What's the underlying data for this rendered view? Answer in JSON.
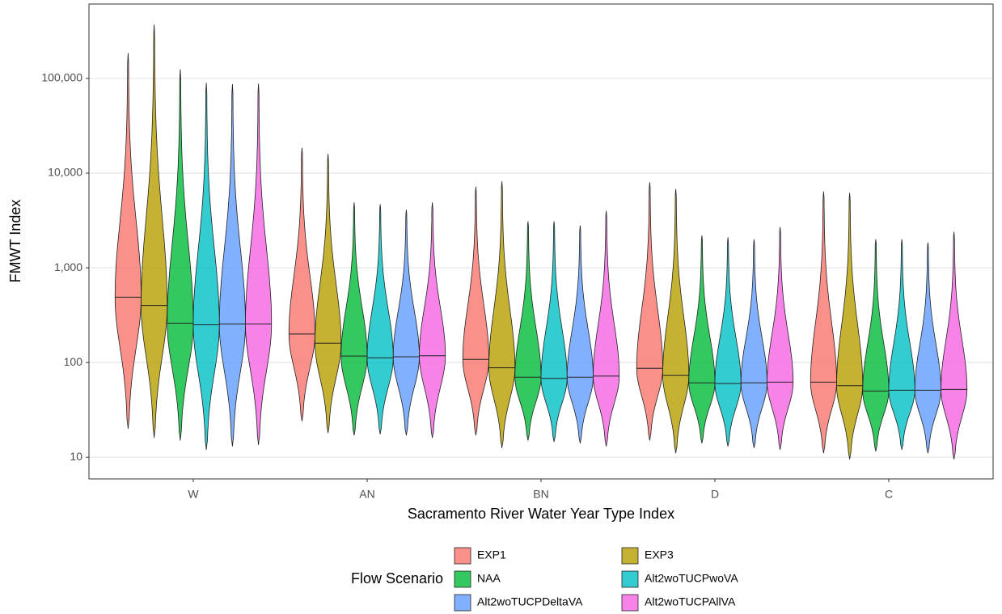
{
  "chart_data": {
    "type": "violin",
    "x_label": "Sacramento River Water Year Type Index",
    "y_label": "FMWT Index",
    "legend_title": "Flow Scenario",
    "categories": [
      "W",
      "AN",
      "BN",
      "D",
      "C"
    ],
    "log_scale": true,
    "grid": true,
    "ylim": [
      5.9,
      610000
    ],
    "yticks": [
      10,
      100,
      {
        "value": 1000,
        "label": "1,000"
      },
      {
        "value": 10000,
        "label": "10,000"
      },
      {
        "value": 100000,
        "label": "100,000"
      }
    ],
    "series": [
      {
        "name": "EXP1",
        "color": "#f8766d",
        "min": [
          20,
          24,
          17,
          15,
          11
        ],
        "median": [
          490,
          200,
          108,
          87,
          62
        ],
        "max": [
          185000,
          18500,
          7200,
          8000,
          6400
        ]
      },
      {
        "name": "EXP3",
        "color": "#b79f00",
        "min": [
          16,
          18,
          12.5,
          11,
          9.5
        ],
        "median": [
          400,
          160,
          88,
          73,
          57
        ],
        "max": [
          370000,
          16000,
          8200,
          6800,
          6200
        ]
      },
      {
        "name": "NAA",
        "color": "#00ba38",
        "min": [
          15,
          17,
          15,
          14,
          11.5
        ],
        "median": [
          260,
          117,
          70,
          61,
          50
        ],
        "max": [
          125000,
          4900,
          3100,
          2200,
          2000
        ]
      },
      {
        "name": "Alt2woTUCPwoVA",
        "color": "#00bfc4",
        "min": [
          12,
          17.5,
          14.5,
          13,
          12
        ],
        "median": [
          250,
          112,
          68,
          60,
          51
        ],
        "max": [
          90000,
          4700,
          3100,
          2100,
          2000
        ]
      },
      {
        "name": "Alt2woTUCPDeltaVA",
        "color": "#619cff",
        "min": [
          13,
          17,
          14,
          12.5,
          11
        ],
        "median": [
          255,
          115,
          70,
          61,
          51
        ],
        "max": [
          87000,
          4100,
          2800,
          2000,
          1850
        ]
      },
      {
        "name": "Alt2woTUCPAllVA",
        "color": "#f564e3",
        "min": [
          13.5,
          16,
          13,
          12,
          9.5
        ],
        "median": [
          255,
          118,
          72,
          62,
          52
        ],
        "max": [
          88000,
          4900,
          4000,
          2700,
          2400
        ]
      }
    ]
  }
}
